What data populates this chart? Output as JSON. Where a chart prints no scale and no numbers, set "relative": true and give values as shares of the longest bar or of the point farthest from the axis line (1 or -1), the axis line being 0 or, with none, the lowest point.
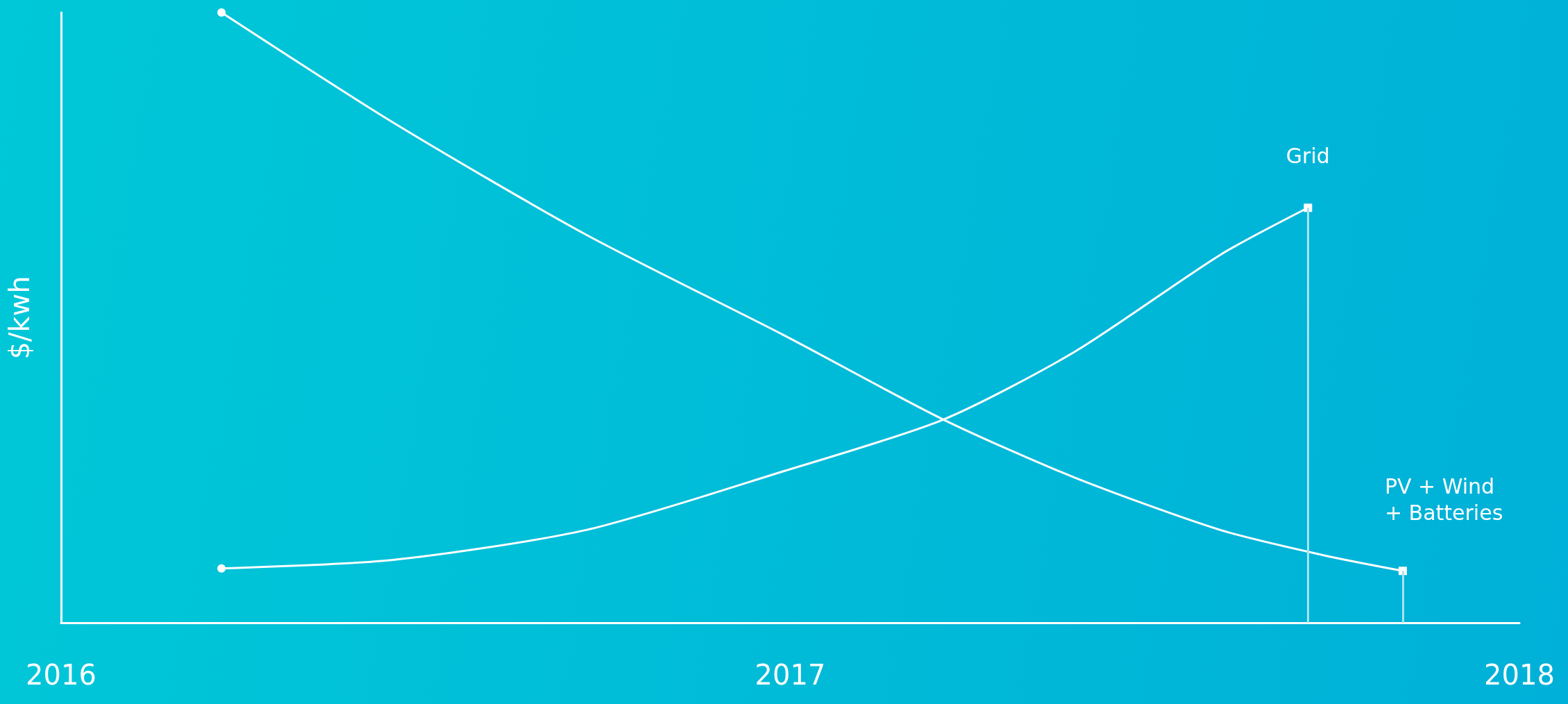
{
  "chart_data": {
    "type": "line",
    "relative": true,
    "ylabel": "$/kwh",
    "xlim": [
      2016,
      2018
    ],
    "xticks": [
      2016,
      2017,
      2018
    ],
    "grid": false,
    "legend": false,
    "ref_lines": [
      {
        "axis": "x",
        "value": 2017.71,
        "color": "#a8e4f0"
      },
      {
        "axis": "x",
        "value": 2017.84,
        "color": "#a8e4f0"
      }
    ],
    "series": [
      {
        "name": "Grid",
        "color": "#ffffff",
        "x": [
          2016.22,
          2016.455,
          2016.72,
          2016.99,
          2017.21,
          2017.39,
          2017.59,
          2017.71
        ],
        "values": [
          0.089,
          0.103,
          0.152,
          0.248,
          0.333,
          0.444,
          0.603,
          0.68
        ]
      },
      {
        "name": "PV + Wind + Batteries",
        "color": "#ffffff",
        "x": [
          2016.22,
          2016.455,
          2016.72,
          2016.99,
          2017.21,
          2017.39,
          2017.59,
          2017.73,
          2017.84
        ],
        "values": [
          1,
          0.82,
          0.636,
          0.472,
          0.333,
          0.238,
          0.152,
          0.111,
          0.085
        ]
      }
    ]
  }
}
